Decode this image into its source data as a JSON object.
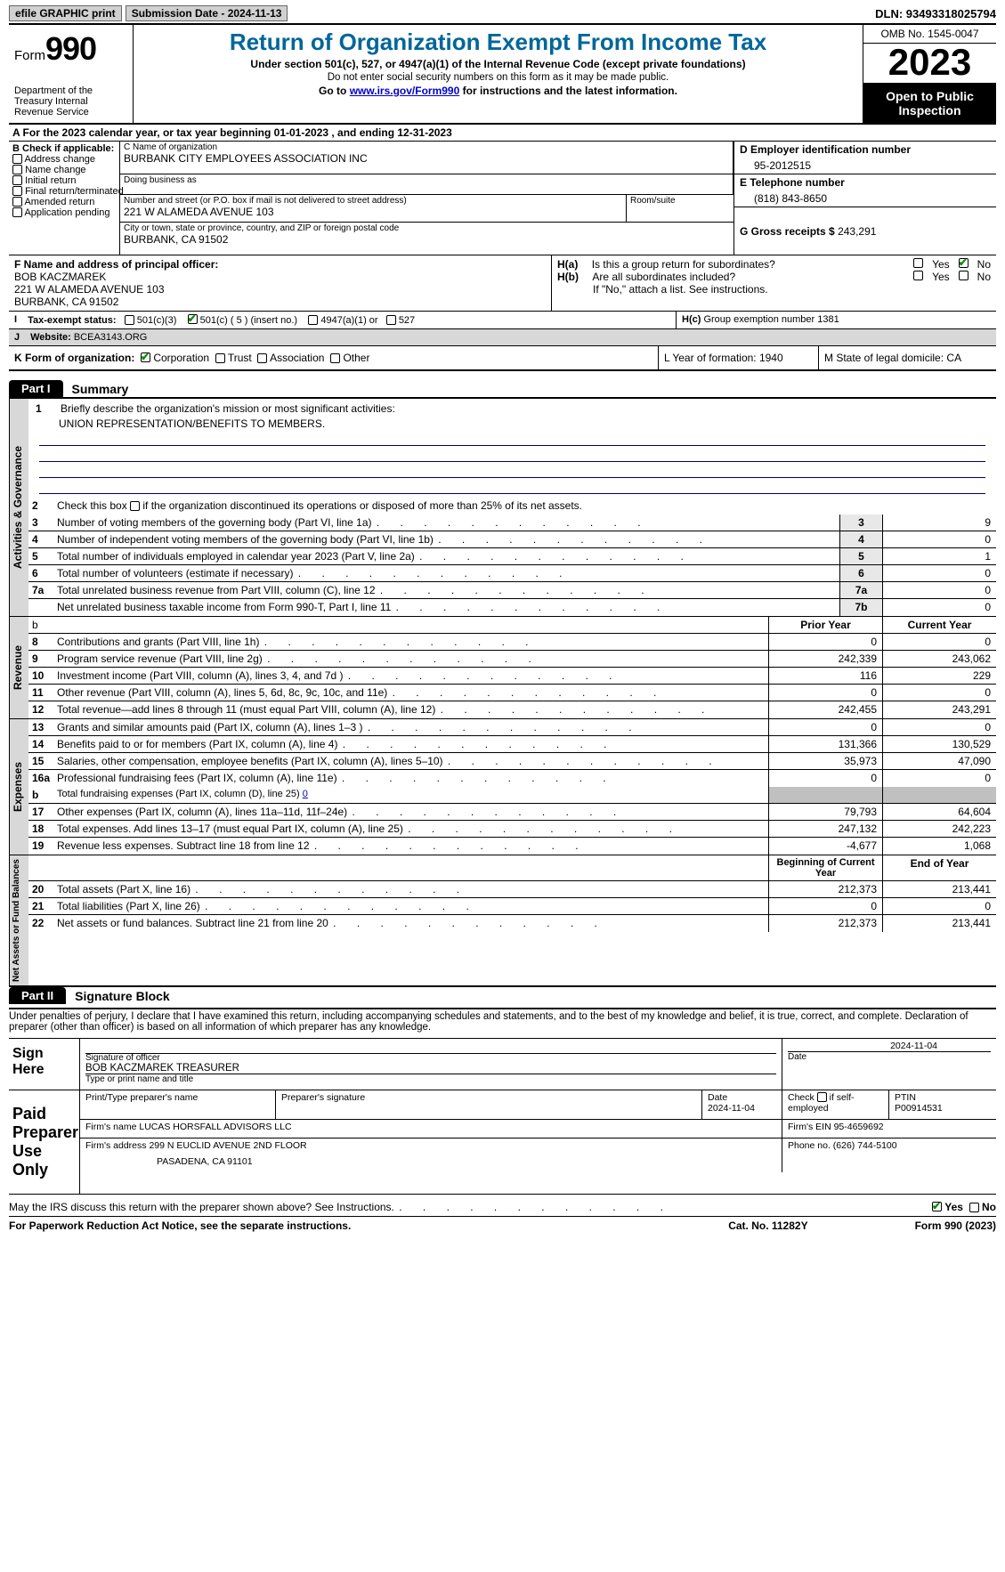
{
  "topbar": {
    "efile": "efile GRAPHIC print",
    "submission": "Submission Date - 2024-11-13",
    "dln": "DLN: 93493318025794"
  },
  "header": {
    "form_prefix": "Form",
    "form_num": "990",
    "dept": "Department of the Treasury Internal Revenue Service",
    "title": "Return of Organization Exempt From Income Tax",
    "sub1": "Under section 501(c), 527, or 4947(a)(1) of the Internal Revenue Code (except private foundations)",
    "sub2": "Do not enter social security numbers on this form as it may be made public.",
    "sub3a": "Go to ",
    "sub3_link": "www.irs.gov/Form990",
    "sub3b": " for instructions and the latest information.",
    "omb": "OMB No. 1545-0047",
    "year": "2023",
    "inspect": "Open to Public Inspection"
  },
  "a": {
    "line": "A For the 2023 calendar year, or tax year beginning 01-01-2023    , and ending 12-31-2023"
  },
  "b": {
    "hdr": "B Check if applicable:",
    "opts": [
      "Address change",
      "Name change",
      "Initial return",
      "Final return/terminated",
      "Amended return",
      "Application pending"
    ]
  },
  "c": {
    "name_lbl": "C Name of organization",
    "name": "BURBANK CITY EMPLOYEES ASSOCIATION INC",
    "dba_lbl": "Doing business as",
    "dba": "",
    "street_lbl": "Number and street (or P.O. box if mail is not delivered to street address)",
    "street": "221 W ALAMEDA AVENUE 103",
    "room_lbl": "Room/suite",
    "room": "",
    "city_lbl": "City or town, state or province, country, and ZIP or foreign postal code",
    "city": "BURBANK, CA   91502"
  },
  "d": {
    "lbl": "D Employer identification number",
    "val": "95-2012515"
  },
  "e": {
    "lbl": "E Telephone number",
    "val": "(818) 843-8650"
  },
  "g": {
    "lbl": "G Gross receipts $",
    "val": "243,291"
  },
  "f": {
    "lbl": "F  Name and address of principal officer:",
    "name": "BOB KACZMAREK",
    "addr1": "221 W ALAMEDA AVENUE 103",
    "addr2": "BURBANK, CA   91502"
  },
  "h": {
    "a_txt": "Is this a group return for subordinates?",
    "b_txt": "Are all subordinates included?",
    "note": "If \"No,\" attach a list. See instructions.",
    "c_txt": "Group exemption number   ",
    "c_val": "1381",
    "yes": "Yes",
    "no": "No"
  },
  "i": {
    "lbl": "Tax-exempt status:",
    "o1": "501(c)(3)",
    "o2": "501(c) ( 5 ) (insert no.)",
    "o3": "4947(a)(1) or",
    "o4": "527"
  },
  "j": {
    "lbl": "Website:  ",
    "val": "BCEA3143.ORG"
  },
  "k": {
    "lbl": "K Form of organization:",
    "o1": "Corporation",
    "o2": "Trust",
    "o3": "Association",
    "o4": "Other"
  },
  "l": {
    "txt": "L Year of formation: 1940"
  },
  "m": {
    "txt": "M State of legal domicile: CA"
  },
  "parts": {
    "p1_tag": "Part I",
    "p1_title": "Summary",
    "p2_tag": "Part II",
    "p2_title": "Signature Block"
  },
  "briefly": {
    "num": "1",
    "txt": "Briefly describe the organization's mission or most significant activities:",
    "val": "UNION REPRESENTATION/BENEFITS TO MEMBERS."
  },
  "vtabs": {
    "gov": "Activities & Governance",
    "rev": "Revenue",
    "exp": "Expenses",
    "net": "Net Assets or Fund Balances"
  },
  "gov": {
    "l2": "Check this box          if the organization discontinued its operations or disposed of more than 25% of its net assets.",
    "rows": [
      {
        "n": "3",
        "t": "Number of voting members of the governing body (Part VI, line 1a)",
        "c": "3",
        "v": "9"
      },
      {
        "n": "4",
        "t": "Number of independent voting members of the governing body (Part VI, line 1b)",
        "c": "4",
        "v": "0"
      },
      {
        "n": "5",
        "t": "Total number of individuals employed in calendar year 2023 (Part V, line 2a)",
        "c": "5",
        "v": "1"
      },
      {
        "n": "6",
        "t": "Total number of volunteers (estimate if necessary)",
        "c": "6",
        "v": "0"
      },
      {
        "n": "7a",
        "t": "Total unrelated business revenue from Part VIII, column (C), line 12",
        "c": "7a",
        "v": "0"
      },
      {
        "n": "",
        "t": "Net unrelated business taxable income from Form 990-T, Part I, line 11",
        "c": "7b",
        "v": "0"
      }
    ]
  },
  "revexp": {
    "hdr_b": "b",
    "hdr_prior": "Prior Year",
    "hdr_curr": "Current Year",
    "rev": [
      {
        "n": "8",
        "t": "Contributions and grants (Part VIII, line 1h)",
        "p": "0",
        "c": "0"
      },
      {
        "n": "9",
        "t": "Program service revenue (Part VIII, line 2g)",
        "p": "242,339",
        "c": "243,062"
      },
      {
        "n": "10",
        "t": "Investment income (Part VIII, column (A), lines 3, 4, and 7d )",
        "p": "116",
        "c": "229"
      },
      {
        "n": "11",
        "t": "Other revenue (Part VIII, column (A), lines 5, 6d, 8c, 9c, 10c, and 11e)",
        "p": "0",
        "c": "0"
      },
      {
        "n": "12",
        "t": "Total revenue—add lines 8 through 11 (must equal Part VIII, column (A), line 12)",
        "p": "242,455",
        "c": "243,291"
      }
    ],
    "exp": [
      {
        "n": "13",
        "t": "Grants and similar amounts paid (Part IX, column (A), lines 1–3 )",
        "p": "0",
        "c": "0"
      },
      {
        "n": "14",
        "t": "Benefits paid to or for members (Part IX, column (A), line 4)",
        "p": "131,366",
        "c": "130,529"
      },
      {
        "n": "15",
        "t": "Salaries, other compensation, employee benefits (Part IX, column (A), lines 5–10)",
        "p": "35,973",
        "c": "47,090"
      },
      {
        "n": "16a",
        "t": "Professional fundraising fees (Part IX, column (A), line 11e)",
        "p": "0",
        "c": "0"
      }
    ],
    "exp_b": {
      "n": "b",
      "t": "Total fundraising expenses (Part IX, column (D), line 25)",
      "link": "0"
    },
    "exp2": [
      {
        "n": "17",
        "t": "Other expenses (Part IX, column (A), lines 11a–11d, 11f–24e)",
        "p": "79,793",
        "c": "64,604"
      },
      {
        "n": "18",
        "t": "Total expenses. Add lines 13–17 (must equal Part IX, column (A), line 25)",
        "p": "247,132",
        "c": "242,223"
      },
      {
        "n": "19",
        "t": "Revenue less expenses. Subtract line 18 from line 12",
        "p": "-4,677",
        "c": "1,068"
      }
    ],
    "net_hdr_p": "Beginning of Current Year",
    "net_hdr_c": "End of Year",
    "net": [
      {
        "n": "20",
        "t": "Total assets (Part X, line 16)",
        "p": "212,373",
        "c": "213,441"
      },
      {
        "n": "21",
        "t": "Total liabilities (Part X, line 26)",
        "p": "0",
        "c": "0"
      },
      {
        "n": "22",
        "t": "Net assets or fund balances. Subtract line 21 from line 20",
        "p": "212,373",
        "c": "213,441"
      }
    ]
  },
  "sig": {
    "intro": "Under penalties of perjury, I declare that I have examined this return, including accompanying schedules and statements, and to the best of my knowledge and belief, it is true, correct, and complete. Declaration of preparer (other than officer) is based on all information of which preparer has any knowledge.",
    "sign_here": "Sign Here",
    "off_sig_lbl": "Signature of officer",
    "off_name": "BOB KACZMAREK  TREASURER",
    "off_name_lbl": "Type or print name and title",
    "date_lbl": "Date",
    "date_top": "2024-11-04",
    "paid": "Paid Preparer Use Only",
    "prep_name_lbl": "Print/Type preparer's name",
    "prep_sig_lbl": "Preparer's signature",
    "prep_date_lbl": "Date",
    "prep_date": "2024-11-04",
    "self_lbl": "if self-employed",
    "check_lbl": "Check",
    "ptin_lbl": "PTIN",
    "ptin": "P00914531",
    "firm_name_lbl": "Firm's name    ",
    "firm_name": "LUCAS HORSFALL ADVISORS LLC",
    "firm_ein_lbl": "Firm's EIN  ",
    "firm_ein": "95-4659692",
    "firm_addr_lbl": "Firm's address ",
    "firm_addr1": "299 N EUCLID AVENUE 2ND FLOOR",
    "firm_addr2": "PASADENA, CA   91101",
    "phone_lbl": "Phone no. ",
    "phone": "(626) 744-5100",
    "may_irs": "May the IRS discuss this return with the preparer shown above? See Instructions.",
    "yes": "Yes",
    "no": "No"
  },
  "footer": {
    "pra": "For Paperwork Reduction Act Notice, see the separate instructions.",
    "cat": "Cat. No. 11282Y",
    "form": "Form 990 (2023)"
  }
}
